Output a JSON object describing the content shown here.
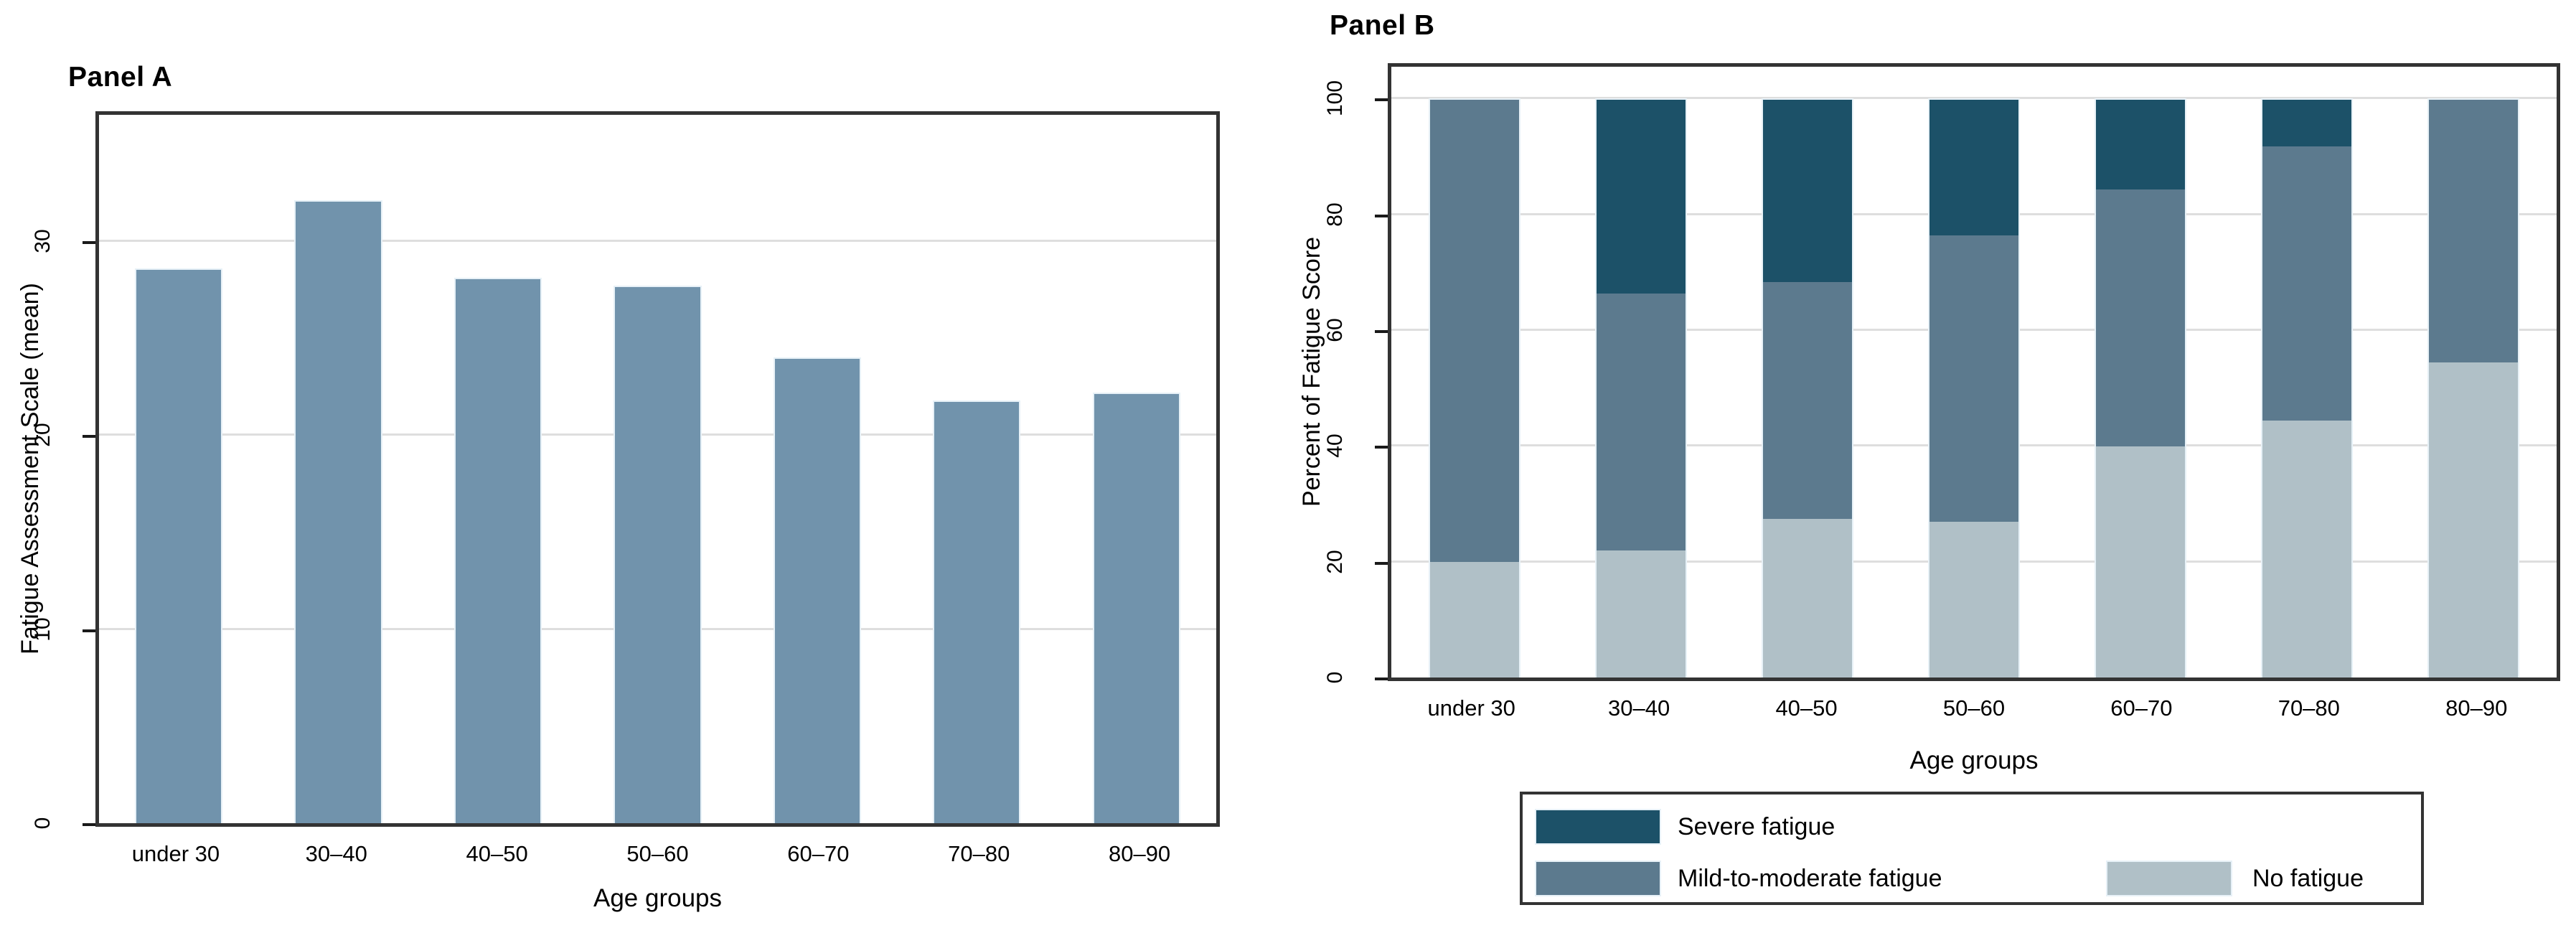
{
  "colors": {
    "panel_a_bar": "#7193AC",
    "severe": "#1C5168",
    "mild": "#5C7A8E",
    "none": "#B0C0C7",
    "gridline": "#DEDEDE",
    "frame": "#333333"
  },
  "chart_data": [
    {
      "type": "bar",
      "title": "Panel A",
      "categories": [
        "under 30",
        "30–40",
        "40–50",
        "50–60",
        "60–70",
        "70–80",
        "80–90"
      ],
      "values": [
        28.6,
        32.1,
        28.1,
        27.7,
        24.0,
        21.8,
        22.2
      ],
      "xlabel": "Age groups",
      "ylabel": "Fatigue Assessment Scale (mean)",
      "yticks": [
        0,
        10,
        20,
        30
      ],
      "ylim": [
        0,
        36.5
      ],
      "grid": true,
      "legend": "none",
      "bar_color": "#7193AC"
    },
    {
      "type": "stacked-bar",
      "title": "Panel B",
      "categories": [
        "under 30",
        "30–40",
        "40–50",
        "50–60",
        "60–70",
        "70–80",
        "80–90"
      ],
      "series": [
        {
          "name": "No fatigue",
          "color": "#B0C0C7",
          "values": [
            20,
            22,
            27.5,
            27,
            40,
            44.5,
            54.5
          ]
        },
        {
          "name": "Mild-to-moderate fatigue",
          "color": "#5C7A8E",
          "values": [
            80,
            44.5,
            41,
            49.5,
            44.5,
            47.5,
            45.5
          ]
        },
        {
          "name": "Severe fatigue",
          "color": "#1C5168",
          "values": [
            0,
            33.5,
            31.5,
            23.5,
            15.5,
            8,
            0
          ]
        }
      ],
      "xlabel": "Age groups",
      "ylabel": "Percent of Fatigue Score",
      "yticks": [
        0,
        20,
        40,
        60,
        80,
        100
      ],
      "ylim": [
        0,
        105.5
      ],
      "grid": true,
      "legend": {
        "position": "bottom",
        "entries": [
          "Severe fatigue",
          "Mild-to-moderate fatigue",
          "No fatigue"
        ]
      }
    }
  ]
}
